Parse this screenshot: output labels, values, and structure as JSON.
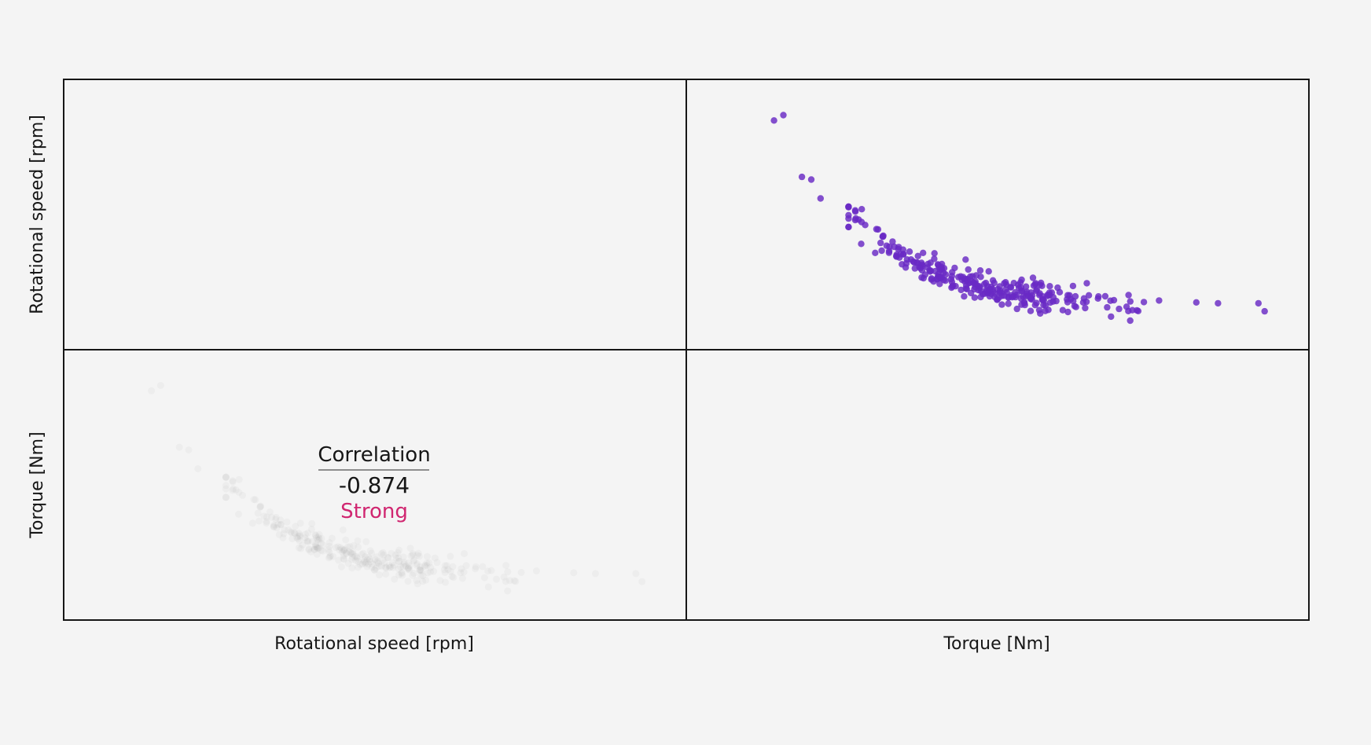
{
  "colors": {
    "background": "#f4f4f4",
    "frame": "#161616",
    "points": "#6929c4",
    "strength": "#d02670",
    "ghost_points": "#8d8d8d"
  },
  "variables": [
    "Rotational speed [rpm]",
    "Torque [Nm]"
  ],
  "correlation": {
    "title": "Correlation",
    "value": "-0.874",
    "strength": "Strong"
  },
  "chart_data": {
    "type": "scatter",
    "matrix": "pairplot",
    "grid": false,
    "variables": [
      "Rotational speed [rpm]",
      "Torque [Nm]"
    ],
    "xlabel_cells": [
      "Rotational speed [rpm]",
      "Torque [Nm]"
    ],
    "ylabel_cells": [
      "Rotational speed [rpm]",
      "Torque [Nm]"
    ],
    "ticks_shown": false,
    "upper_panel": {
      "x_variable": "Torque [Nm]",
      "y_variable": "Rotational speed [rpm]",
      "x_range": [
        0,
        100
      ],
      "y_range": [
        0,
        100
      ],
      "point_count": 300,
      "curve": "decreasing convex",
      "outliers": [
        [
          14,
          85
        ],
        [
          15.5,
          87
        ],
        [
          18.5,
          64
        ],
        [
          20,
          63
        ],
        [
          21.5,
          56
        ],
        [
          93,
          14
        ],
        [
          85.5,
          17
        ],
        [
          92,
          17
        ],
        [
          76,
          18
        ]
      ]
    },
    "lower_panel": {
      "content": "correlation annotation over faint mirrored scatter",
      "correlation": -0.874,
      "strength": "Strong"
    }
  }
}
